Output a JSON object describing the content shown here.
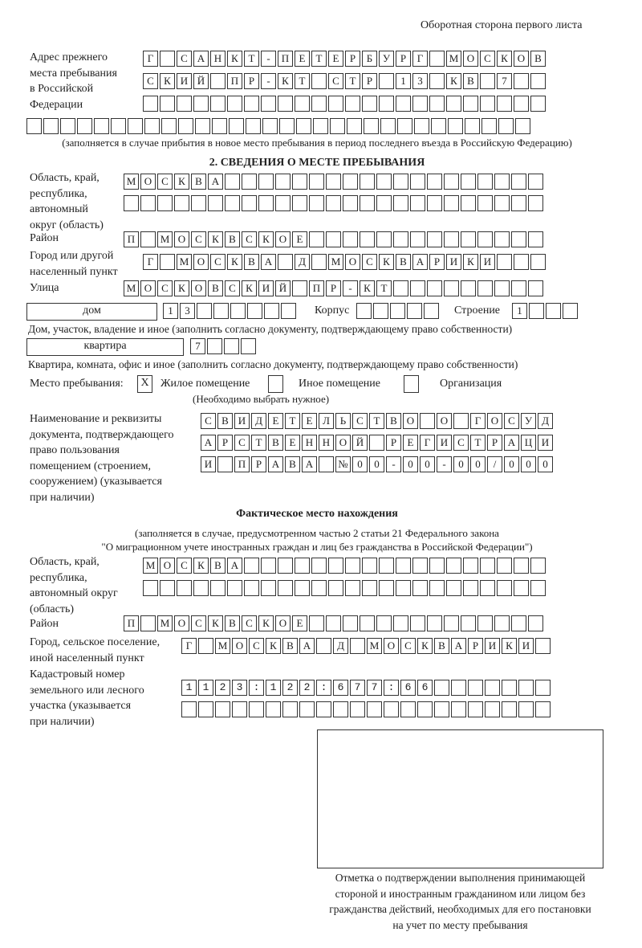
{
  "header": "Оборотная сторона первого листа",
  "prev_address": {
    "label": [
      "Адрес прежнего",
      "места пребывания",
      "в Российской",
      "Федерации"
    ],
    "rows": [
      "Г САНКТ-ПЕТЕРБУРГ МОСКОВ",
      "СКИЙ ПР-КТ СТР 13 КВ 7",
      "",
      ""
    ],
    "note": "(заполняется в случае прибытия в новое место пребывания в период последнего въезда в Российскую Федерацию)"
  },
  "section2": {
    "title": "2. СВЕДЕНИЯ О МЕСТЕ ПРЕБЫВАНИЯ",
    "region_label": [
      "Область, край,",
      "республика,",
      "автономный",
      "округ (область)"
    ],
    "region_rows": [
      "МОСКВА",
      ""
    ],
    "district_label": "Район",
    "district": "П МОСКВСКОЕ",
    "city_label": [
      "Город или другой",
      "населенный пункт"
    ],
    "city": "Г МОСКВА Д МОСКВАРИКИ",
    "street_label": "Улица",
    "street": "МОСКОВСКИЙ ПР-КТ",
    "house_type": "дом",
    "house": "13",
    "korpus_label": "Корпус",
    "korpus": "",
    "building_label": "Строение",
    "building": "1",
    "house_note": "Дом, участок, владение и иное (заполнить согласно документу, подтверждающему право собственности)",
    "flat_type": "квартира",
    "flat": "7",
    "flat_note": "Квартира, комната, офис и иное (заполнить согласно документу, подтверждающему право собственности)",
    "stay_label": "Место пребывания:",
    "stay_options": [
      {
        "label": "Жилое помещение",
        "mark": "Х"
      },
      {
        "label": "Иное помещение",
        "mark": ""
      },
      {
        "label": "Организация",
        "mark": ""
      }
    ],
    "stay_note": "(Необходимо выбрать нужное)",
    "doc_label": [
      "Наименование и реквизиты",
      "документа, подтверждающего",
      "право пользования",
      "помещением (строением,",
      "сооружением) (указывается",
      "при наличии)"
    ],
    "doc_rows": [
      "СВИДЕТЕЛЬСТВО О ГОСУД",
      "АРСТВЕННОЙ РЕГИСТРАЦИ",
      "И ПРАВА №00-00-00/000"
    ]
  },
  "actual": {
    "title": "Фактическое место нахождения",
    "note": [
      "(заполняется в случае, предусмотренном частью 2 статьи 21 Федерального закона",
      "\"О миграционном учете иностранных граждан и лиц без гражданства в Российской Федерации\")"
    ],
    "region_label": [
      "Область, край,",
      "республика,",
      "автономный округ",
      "(область)"
    ],
    "region_rows": [
      "МОСКВА",
      ""
    ],
    "district_label": "Район",
    "district": "П МОСКВСКОЕ",
    "city_label": [
      "Город, сельское поселение,",
      "иной населенный пункт"
    ],
    "city": "Г МОСКВА Д МОСКВАРИКИ",
    "cadastre_label": [
      "Кадастровый номер",
      "земельного или лесного",
      "участка (указывается",
      "при наличии)"
    ],
    "cadastre_rows": [
      "1123:122:677:66",
      ""
    ]
  },
  "stamp": {
    "caption": [
      "Отметка о подтверждении выполнения принимающей",
      "стороной и иностранным гражданином или лицом без",
      "гражданства действий, необходимых для его постановки",
      "на учет по месту пребывания"
    ]
  }
}
